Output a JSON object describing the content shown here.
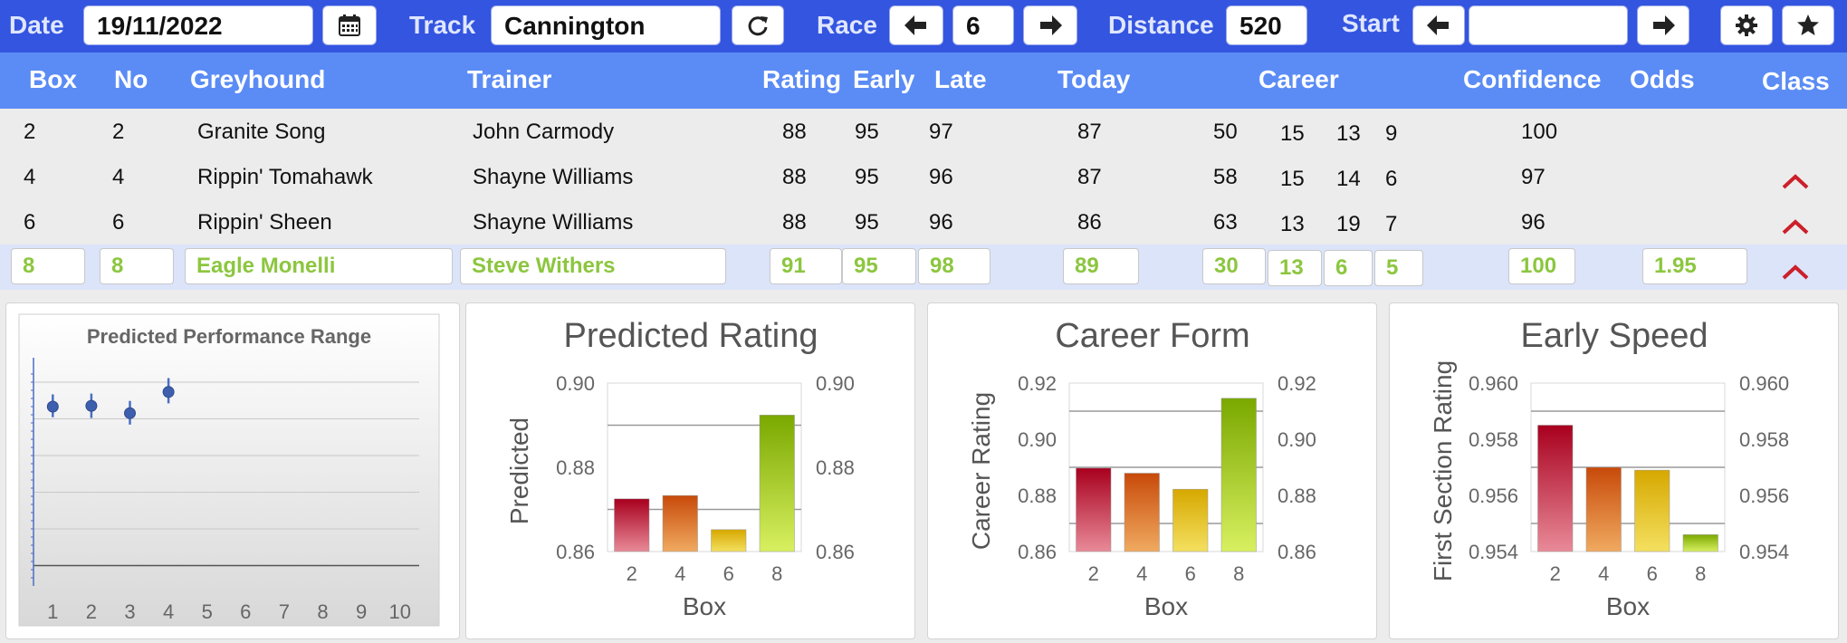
{
  "toolbar": {
    "date_label": "Date",
    "date_value": "19/11/2022",
    "track_label": "Track",
    "track_value": "Cannington",
    "race_label": "Race",
    "race_value": "6",
    "distance_label": "Distance",
    "distance_value": "520",
    "start_label": "Start",
    "start_value": ""
  },
  "columns": {
    "box": "Box",
    "no": "No",
    "greyhound": "Greyhound",
    "trainer": "Trainer",
    "rating": "Rating",
    "early": "Early",
    "late": "Late",
    "today": "Today",
    "career": "Career",
    "confidence": "Confidence",
    "odds": "Odds",
    "class": "Class"
  },
  "rows": [
    {
      "box": "2",
      "no": "2",
      "greyhound": "Granite Song",
      "trainer": "John Carmody",
      "rating": "88",
      "early": "95",
      "late": "97",
      "today": "87",
      "career": [
        "50",
        "15",
        "13",
        "9"
      ],
      "confidence": "100",
      "odds": "",
      "class_up": false
    },
    {
      "box": "4",
      "no": "4",
      "greyhound": "Rippin' Tomahawk",
      "trainer": "Shayne Williams",
      "rating": "88",
      "early": "95",
      "late": "96",
      "today": "87",
      "career": [
        "58",
        "15",
        "14",
        "6"
      ],
      "confidence": "97",
      "odds": "",
      "class_up": true
    },
    {
      "box": "6",
      "no": "6",
      "greyhound": "Rippin' Sheen",
      "trainer": "Shayne Williams",
      "rating": "88",
      "early": "95",
      "late": "96",
      "today": "86",
      "career": [
        "63",
        "13",
        "19",
        "7"
      ],
      "confidence": "96",
      "odds": "",
      "class_up": true
    },
    {
      "box": "8",
      "no": "8",
      "greyhound": "Eagle Monelli",
      "trainer": "Steve Withers",
      "rating": "91",
      "early": "95",
      "late": "98",
      "today": "89",
      "career": [
        "30",
        "13",
        "6",
        "5"
      ],
      "confidence": "100",
      "odds": "1.95",
      "class_up": true
    }
  ],
  "colors": {
    "accent": "#3355e0",
    "header": "#5b8cf5",
    "highlight_text": "#8cc63f",
    "class_up": "#cc1f2a"
  },
  "icons": [
    "calendar-icon",
    "refresh-icon",
    "arrow-left-icon",
    "arrow-right-icon",
    "gear-icon",
    "star-icon",
    "chevron-up-icon"
  ],
  "chart_data": [
    {
      "type": "scatter",
      "title": "Predicted Performance Range",
      "x": [
        1,
        2,
        3,
        4
      ],
      "y": [
        0.87,
        0.871,
        0.862,
        0.888
      ],
      "error": [
        [
          0.857,
          0.885
        ],
        [
          0.856,
          0.886
        ],
        [
          0.848,
          0.877
        ],
        [
          0.874,
          0.905
        ]
      ],
      "xticks": [
        "1",
        "2",
        "3",
        "4",
        "5",
        "6",
        "7",
        "8",
        "9",
        "10"
      ],
      "xlim": [
        0.5,
        10.5
      ],
      "ylim": [
        0.65,
        0.93
      ],
      "grid": true
    },
    {
      "type": "bar",
      "title": "Predicted Rating",
      "categories": [
        "2",
        "4",
        "6",
        "8"
      ],
      "values": [
        0.8725,
        0.8733,
        0.8652,
        0.8924
      ],
      "xlabel": "Box",
      "ylabel": "Predicted",
      "ylim": [
        0.86,
        0.9
      ],
      "yticks": [
        "0.86",
        "0.88",
        "0.90"
      ],
      "gridlines": [
        0.87,
        0.89
      ]
    },
    {
      "type": "bar",
      "title": "Career Form",
      "categories": [
        "2",
        "4",
        "6",
        "8"
      ],
      "values": [
        0.8897,
        0.8879,
        0.8822,
        0.9146
      ],
      "xlabel": "Box",
      "ylabel": "Career Rating",
      "ylim": [
        0.86,
        0.92
      ],
      "yticks": [
        "0.86",
        "0.88",
        "0.90",
        "0.92"
      ],
      "gridlines": [
        0.87,
        0.89,
        0.91
      ]
    },
    {
      "type": "bar",
      "title": "Early Speed",
      "categories": [
        "2",
        "4",
        "6",
        "8"
      ],
      "values": [
        0.9585,
        0.957,
        0.9569,
        0.9546
      ],
      "xlabel": "Box",
      "ylabel": "First Section Rating",
      "ylim": [
        0.954,
        0.96
      ],
      "yticks": [
        "0.954",
        "0.956",
        "0.958",
        "0.960"
      ],
      "gridlines": [
        0.955,
        0.957,
        0.959
      ]
    }
  ]
}
